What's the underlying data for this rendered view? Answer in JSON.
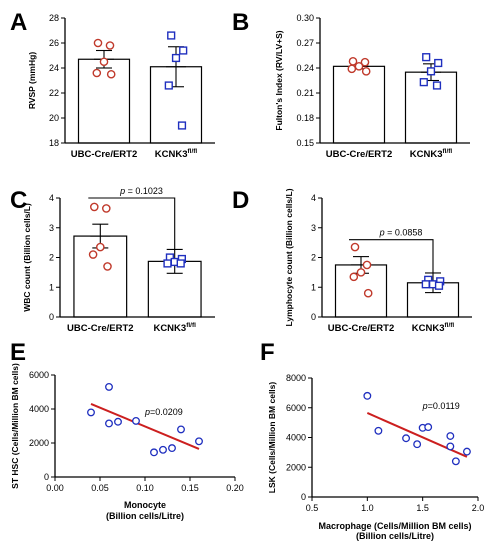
{
  "chart_data": [
    {
      "id": "A",
      "type": "bar",
      "panel_label": "A",
      "ylabel": "RVSP (mmHg)",
      "ylim": [
        18,
        28
      ],
      "yticks": [
        18,
        20,
        22,
        24,
        26,
        28
      ],
      "categories": [
        "UBC-Cre/ERT2",
        "KCNK3fl/fl"
      ],
      "category_labels": [
        {
          "main": "UBC-Cre/ERT2",
          "sup": ""
        },
        {
          "main": "KCNK3",
          "sup": "fl/fl"
        }
      ],
      "values": [
        24.7,
        24.1
      ],
      "errors": [
        0.7,
        1.6
      ],
      "points": [
        [
          26.0,
          25.8,
          24.5,
          23.6,
          23.5
        ],
        [
          26.6,
          25.4,
          24.8,
          22.6,
          19.4
        ]
      ],
      "colors": [
        "#c0392b",
        "#1f2fbf"
      ],
      "markers": [
        "circle",
        "square"
      ]
    },
    {
      "id": "B",
      "type": "bar",
      "panel_label": "B",
      "ylabel": "Fulton's Index (RV/LV+S)",
      "ylim": [
        0.15,
        0.3
      ],
      "yticks": [
        "0.15",
        "0.18",
        "0.21",
        "0.24",
        "0.27",
        "0.30"
      ],
      "categories": [
        "UBC-Cre/ERT2",
        "KCNK3fl/fl"
      ],
      "category_labels": [
        {
          "main": "UBC-Cre/ERT2",
          "sup": ""
        },
        {
          "main": "KCNK3",
          "sup": "fl/fl"
        }
      ],
      "values": [
        0.242,
        0.235
      ],
      "errors": [
        0.003,
        0.01
      ],
      "points": [
        [
          0.248,
          0.247,
          0.242,
          0.239,
          0.236
        ],
        [
          0.253,
          0.246,
          0.236,
          0.223,
          0.219
        ]
      ],
      "colors": [
        "#c0392b",
        "#1f2fbf"
      ],
      "markers": [
        "circle",
        "square"
      ]
    },
    {
      "id": "C",
      "type": "bar",
      "panel_label": "C",
      "ylabel": "WBC count (Billion cells/L)",
      "ylim": [
        0,
        4
      ],
      "yticks": [
        0,
        1,
        2,
        3,
        4
      ],
      "categories": [
        "UBC-Cre/ERT2",
        "KCNK3fl/fl"
      ],
      "category_labels": [
        {
          "main": "UBC-Cre/ERT2",
          "sup": ""
        },
        {
          "main": "KCNK3",
          "sup": "fl/fl"
        }
      ],
      "values": [
        2.72,
        1.87
      ],
      "errors": [
        0.4,
        0.4
      ],
      "points": [
        [
          3.7,
          3.65,
          2.35,
          2.1,
          1.7
        ],
        [
          2.0,
          1.95,
          1.85,
          1.8,
          1.8
        ]
      ],
      "colors": [
        "#c0392b",
        "#1f2fbf"
      ],
      "markers": [
        "circle",
        "square"
      ],
      "p_text": "= 0.1023",
      "bracket_y": 4.0
    },
    {
      "id": "D",
      "type": "bar",
      "panel_label": "D",
      "ylabel": "Lymphocyte count (Billion cells/L)",
      "ylim": [
        0,
        4
      ],
      "yticks": [
        0,
        1,
        2,
        3,
        4
      ],
      "categories": [
        "UBC-Cre/ERT2",
        "KCNK3fl/fl"
      ],
      "category_labels": [
        {
          "main": "UBC-Cre/ERT2",
          "sup": ""
        },
        {
          "main": "KCNK3",
          "sup": "fl/fl"
        }
      ],
      "values": [
        1.75,
        1.15
      ],
      "errors": [
        0.28,
        0.33
      ],
      "points": [
        [
          2.35,
          1.75,
          1.5,
          1.35,
          0.8
        ],
        [
          1.25,
          1.2,
          1.1,
          1.1,
          1.05
        ]
      ],
      "colors": [
        "#c0392b",
        "#1f2fbf"
      ],
      "markers": [
        "circle",
        "square"
      ],
      "p_text": "= 0.0858",
      "bracket_y": 2.6
    },
    {
      "id": "E",
      "type": "scatter",
      "panel_label": "E",
      "xlabel": "Monocyte",
      "xlabel2": "(Billion cells/Litre)",
      "ylabel": "ST HSC (Cells/Million BM cells)",
      "xlim": [
        0,
        0.2
      ],
      "ylim": [
        0,
        6000
      ],
      "xticks": [
        "0.00",
        "0.05",
        "0.10",
        "0.15",
        "0.20"
      ],
      "yticks": [
        0,
        2000,
        4000,
        6000
      ],
      "points": [
        [
          0.04,
          3800
        ],
        [
          0.06,
          5300
        ],
        [
          0.06,
          3150
        ],
        [
          0.07,
          3250
        ],
        [
          0.09,
          3300
        ],
        [
          0.11,
          1450
        ],
        [
          0.12,
          1600
        ],
        [
          0.13,
          1700
        ],
        [
          0.14,
          2800
        ],
        [
          0.16,
          2100
        ]
      ],
      "trend": [
        [
          0.04,
          4300
        ],
        [
          0.16,
          1650
        ]
      ],
      "p_text": "=0.0209",
      "color": "#1f2fbf",
      "line_color": "#cc1f1f"
    },
    {
      "id": "F",
      "type": "scatter",
      "panel_label": "F",
      "xlabel": "Macrophage (Cells/Million BM cells)",
      "xlabel2": "(Billion cells/Litre)",
      "ylabel": "LSK (Cells/Million BM cells)",
      "xlim": [
        0.5,
        2.0
      ],
      "ylim": [
        0,
        8000
      ],
      "xticks": [
        "0.5",
        "1.0",
        "1.5",
        "2.0"
      ],
      "yticks": [
        0,
        2000,
        4000,
        6000,
        8000
      ],
      "points": [
        [
          1.0,
          6800
        ],
        [
          1.1,
          4450
        ],
        [
          1.35,
          3950
        ],
        [
          1.45,
          3550
        ],
        [
          1.5,
          4650
        ],
        [
          1.55,
          4700
        ],
        [
          1.75,
          4100
        ],
        [
          1.75,
          3400
        ],
        [
          1.8,
          2400
        ],
        [
          1.9,
          3050
        ]
      ],
      "trend": [
        [
          1.0,
          5650
        ],
        [
          1.9,
          2700
        ]
      ],
      "p_text": "=0.0119",
      "color": "#1f2fbf",
      "line_color": "#cc1f1f"
    }
  ]
}
